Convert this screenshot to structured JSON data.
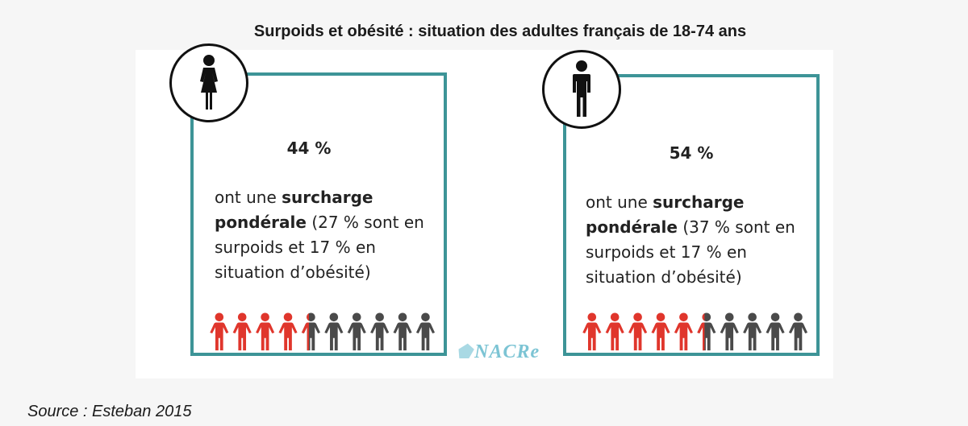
{
  "title": "Surpoids et obésité : situation des adultes français de 18-74 ans",
  "women": {
    "icon": "woman-icon",
    "percent": "44 %",
    "text_pre": "ont une ",
    "text_bold": "surcharge pondérale",
    "text_post": " (27 % sont en surpoids et 17 % en situation d’obésité)",
    "people_total": 10,
    "people_highlighted": 4.4
  },
  "men": {
    "icon": "man-icon",
    "percent": "54 %",
    "text_pre": "ont une ",
    "text_bold": "surcharge pondérale",
    "text_post": " (37 % sont en surpoids et 17 % en situation d’obésité)",
    "people_total": 10,
    "people_highlighted": 5.4
  },
  "logo": "NACRe",
  "source": "Source : Esteban 2015",
  "colors": {
    "border": "#3d9497",
    "highlight": "#e0362c",
    "neutral": "#4a4a4a",
    "logo": "#7cc4d4"
  }
}
